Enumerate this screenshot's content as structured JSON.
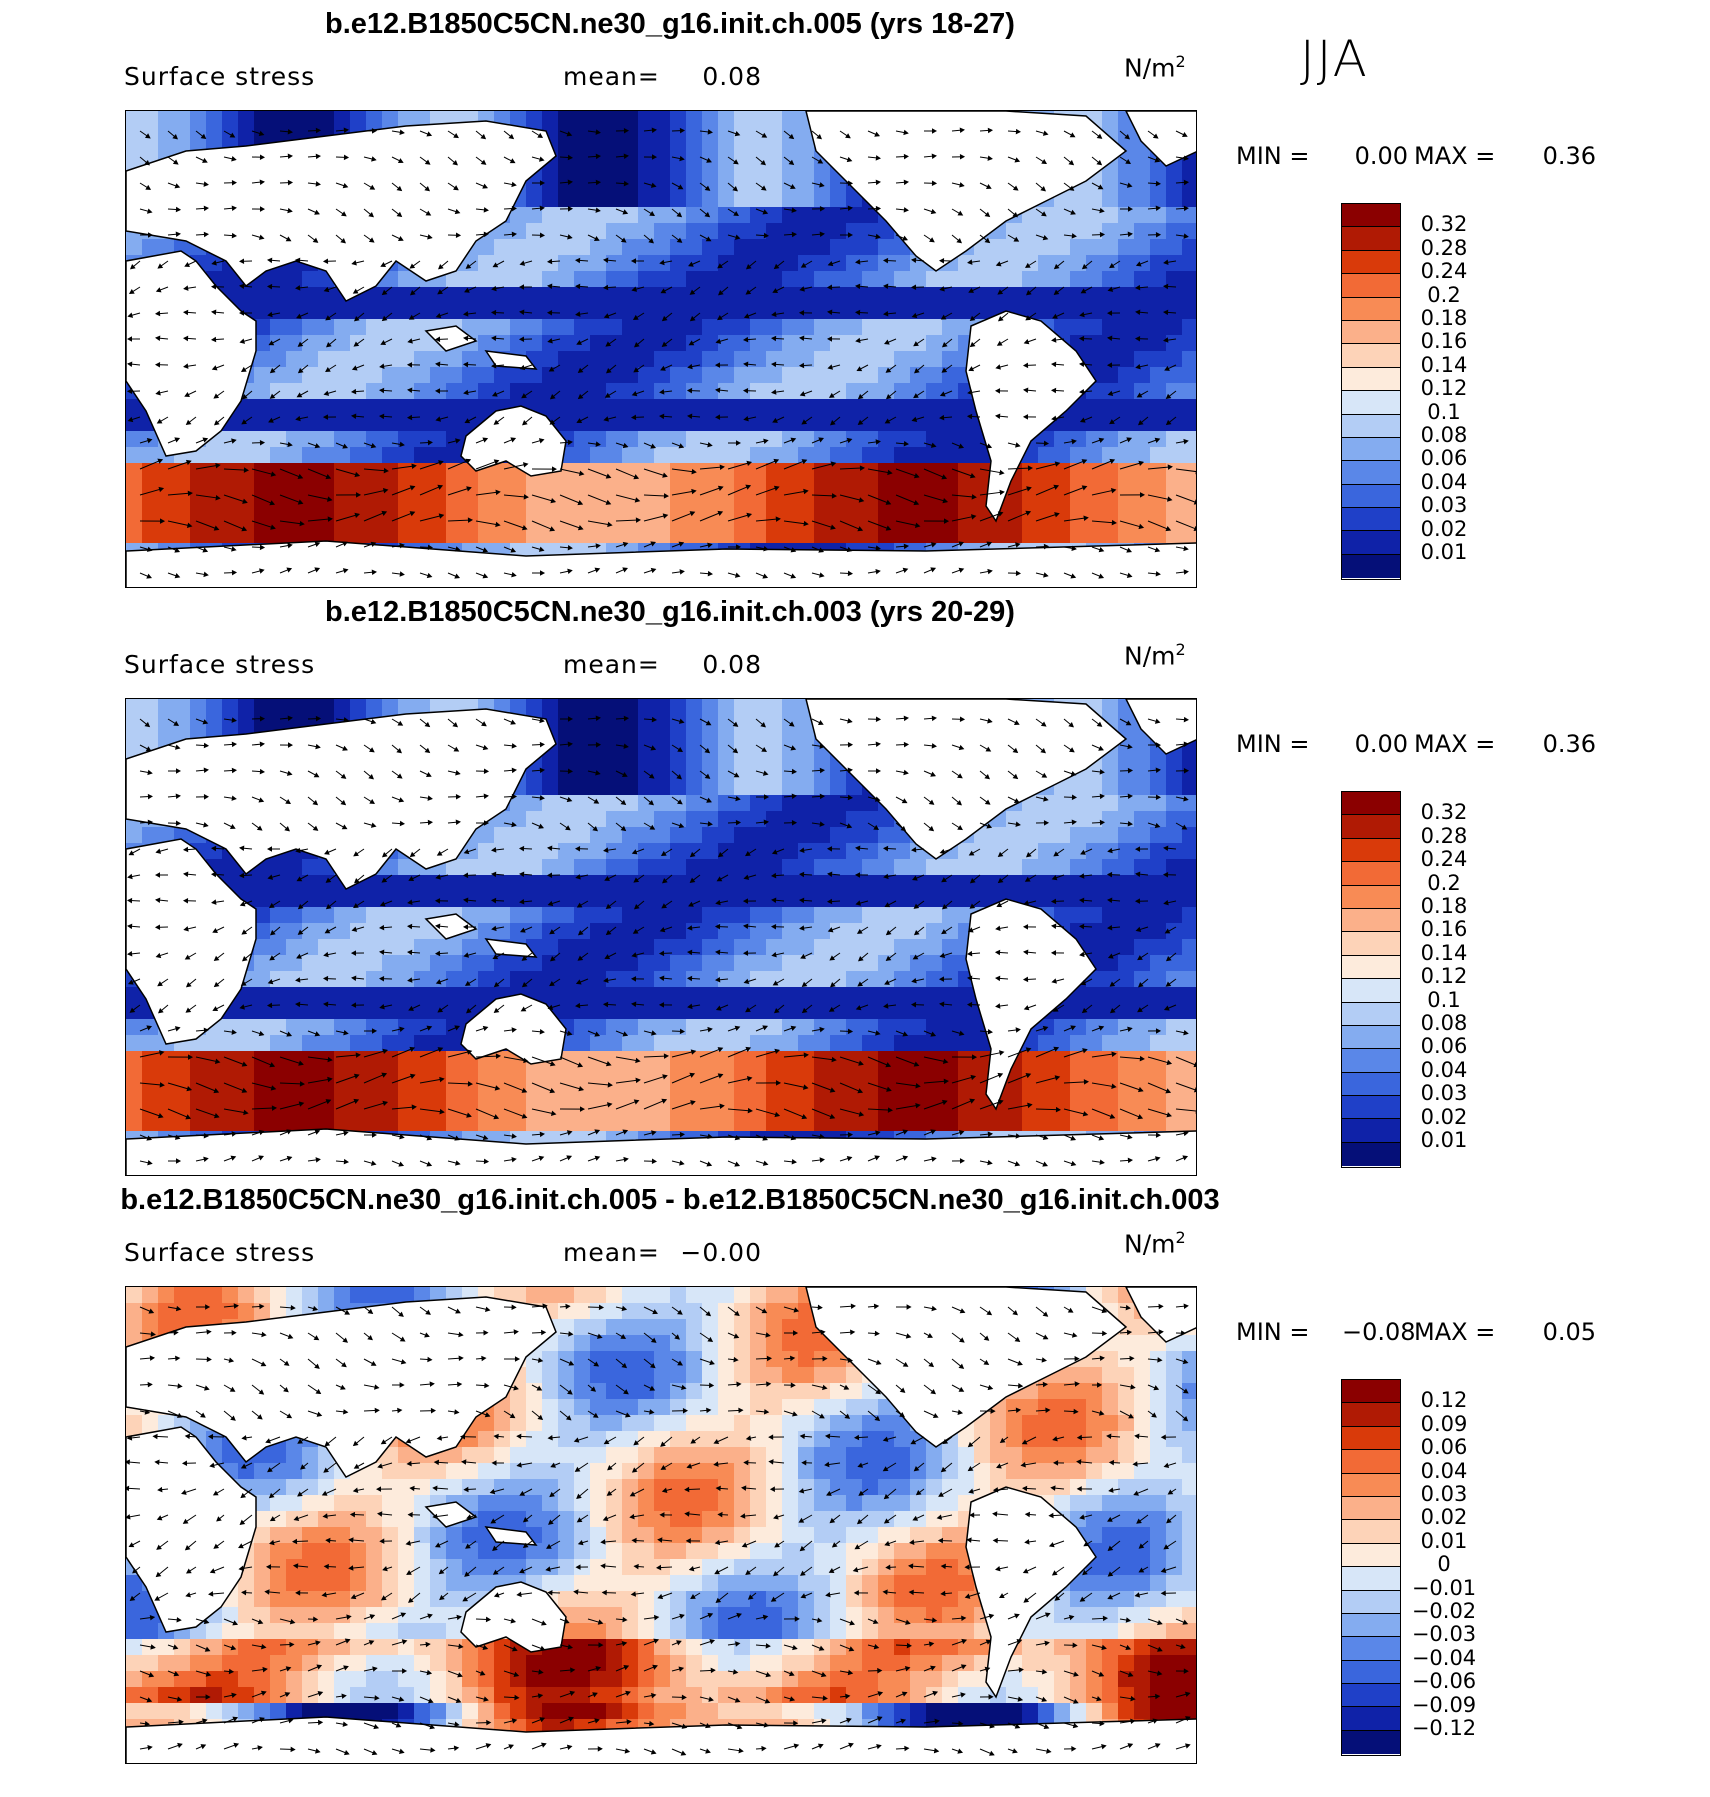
{
  "season": "JJA",
  "panels": [
    {
      "title": "b.e12.B1850C5CN.ne30_g16.init.ch.005 (yrs 18-27)",
      "variable": "Surface stress",
      "mean_label": "mean=",
      "mean_value": "0.08",
      "units": "N/m",
      "units_sup": "2",
      "min_label": "MIN =",
      "min_value": "0.00",
      "max_label": "MAX =",
      "max_value": "0.36",
      "colorbar": {
        "labels": [
          "0.32",
          "0.28",
          "0.24",
          "0.2",
          "0.18",
          "0.16",
          "0.14",
          "0.12",
          "0.1",
          "0.08",
          "0.06",
          "0.04",
          "0.03",
          "0.02",
          "0.01"
        ],
        "colors": [
          "#8b0000",
          "#b01a04",
          "#d93a0a",
          "#f26a36",
          "#f88b55",
          "#fbb08a",
          "#fdd3b8",
          "#fdebdc",
          "#d7e6f8",
          "#b3cdf5",
          "#84acf0",
          "#5a87e8",
          "#3a66dd",
          "#1f40c8",
          "#0f22a8",
          "#050f78"
        ]
      }
    },
    {
      "title": "b.e12.B1850C5CN.ne30_g16.init.ch.003 (yrs 20-29)",
      "variable": "Surface stress",
      "mean_label": "mean=",
      "mean_value": "0.08",
      "units": "N/m",
      "units_sup": "2",
      "min_label": "MIN =",
      "min_value": "0.00",
      "max_label": "MAX =",
      "max_value": "0.36",
      "colorbar": {
        "labels": [
          "0.32",
          "0.28",
          "0.24",
          "0.2",
          "0.18",
          "0.16",
          "0.14",
          "0.12",
          "0.1",
          "0.08",
          "0.06",
          "0.04",
          "0.03",
          "0.02",
          "0.01"
        ],
        "colors": [
          "#8b0000",
          "#b01a04",
          "#d93a0a",
          "#f26a36",
          "#f88b55",
          "#fbb08a",
          "#fdd3b8",
          "#fdebdc",
          "#d7e6f8",
          "#b3cdf5",
          "#84acf0",
          "#5a87e8",
          "#3a66dd",
          "#1f40c8",
          "#0f22a8",
          "#050f78"
        ]
      }
    },
    {
      "title": "b.e12.B1850C5CN.ne30_g16.init.ch.005 - b.e12.B1850C5CN.ne30_g16.init.ch.003",
      "variable": "Surface stress",
      "mean_label": "mean=",
      "mean_value": "−0.00",
      "units": "N/m",
      "units_sup": "2",
      "min_label": "MIN =",
      "min_value": "−0.08",
      "max_label": "MAX =",
      "max_value": "0.05",
      "colorbar": {
        "labels": [
          "0.12",
          "0.09",
          "0.06",
          "0.04",
          "0.03",
          "0.02",
          "0.01",
          "0",
          "−0.01",
          "−0.02",
          "−0.03",
          "−0.04",
          "−0.06",
          "−0.09",
          "−0.12"
        ],
        "colors": [
          "#8b0000",
          "#b01a04",
          "#d93a0a",
          "#f26a36",
          "#f88b55",
          "#fbb08a",
          "#fdd3b8",
          "#fdebdc",
          "#d7e6f8",
          "#b3cdf5",
          "#84acf0",
          "#5a87e8",
          "#3a66dd",
          "#1f40c8",
          "#0f22a8",
          "#050f78"
        ]
      }
    }
  ]
}
